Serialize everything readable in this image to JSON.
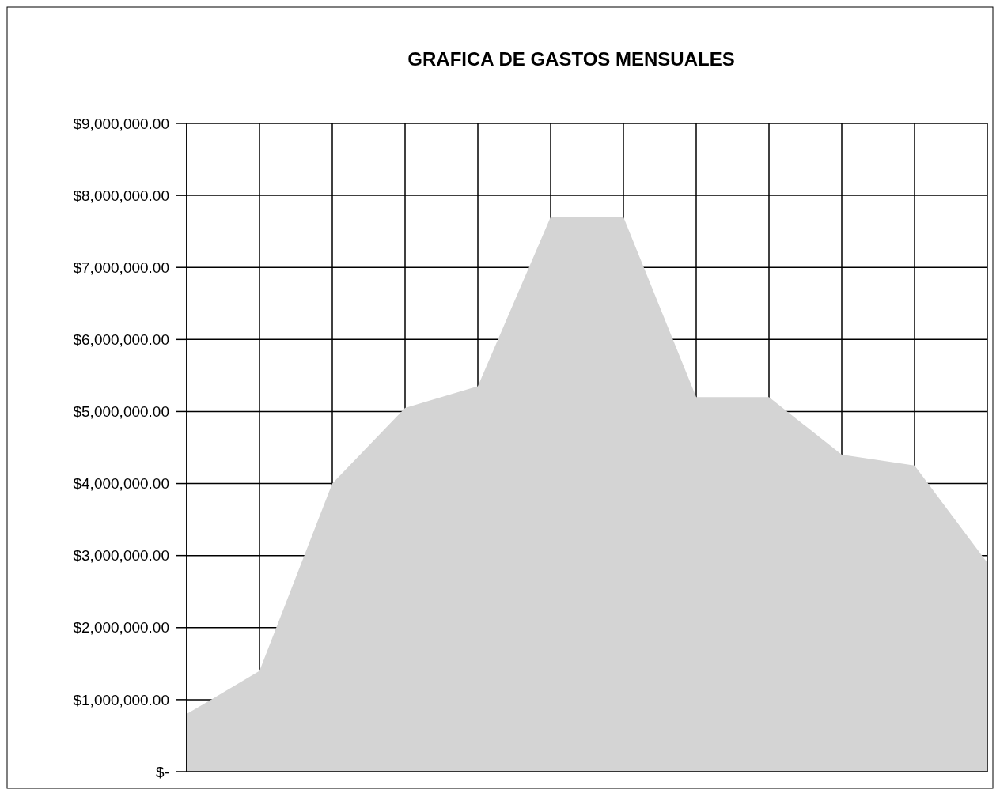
{
  "chart_data": {
    "type": "area",
    "title": "GRAFICA DE GASTOS MENSUALES",
    "categories": [
      null,
      null,
      null,
      null,
      null,
      null,
      null,
      null,
      null,
      null,
      null,
      null
    ],
    "series": [
      {
        "color": "#d4d4d4",
        "values": [
          800000,
          1400000,
          4000000,
          5050000,
          5350000,
          7700000,
          7700000,
          5200000,
          5200000,
          4400000,
          4250000,
          2900000
        ]
      }
    ],
    "ylim": [
      0,
      9000000
    ],
    "yticks": [
      {
        "value": 0,
        "label": "$-"
      },
      {
        "value": 1000000,
        "label": "$1,000,000.00"
      },
      {
        "value": 2000000,
        "label": "$2,000,000.00"
      },
      {
        "value": 3000000,
        "label": "$3,000,000.00"
      },
      {
        "value": 4000000,
        "label": "$4,000,000.00"
      },
      {
        "value": 5000000,
        "label": "$5,000,000.00"
      },
      {
        "value": 6000000,
        "label": "$6,000,000.00"
      },
      {
        "value": 7000000,
        "label": "$7,000,000.00"
      },
      {
        "value": 8000000,
        "label": "$8,000,000.00"
      },
      {
        "value": 9000000,
        "label": "$9,000,000.00"
      }
    ],
    "grid": true
  }
}
